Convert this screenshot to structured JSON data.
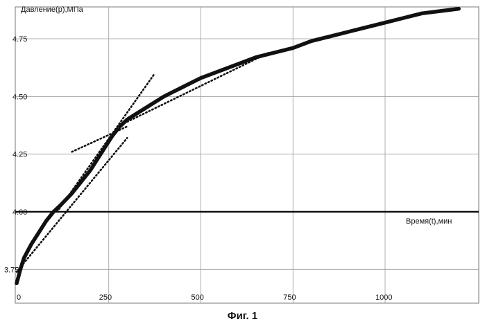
{
  "chart_data": {
    "type": "line",
    "ylabel": "Давление(р),МПа",
    "xlabel": "Время(t),мин",
    "y_ticks": [
      "4.75",
      "4.50",
      "4.25",
      "4.00",
      "3.75"
    ],
    "x_ticks": [
      "0",
      "250",
      "500",
      "750",
      "1000"
    ],
    "x_tick_values": [
      0,
      250,
      500,
      750,
      1000
    ],
    "y_tick_values": [
      4.75,
      4.5,
      4.25,
      4.0,
      3.75
    ],
    "xlim": [
      0,
      1250
    ],
    "ylim": [
      3.68,
      4.88
    ],
    "grid": true,
    "baseline_y": 4.0,
    "series": [
      {
        "style": "solid",
        "x": [
          0,
          5,
          10,
          20,
          40,
          60,
          80,
          100,
          120,
          150,
          180,
          200,
          220,
          240,
          260,
          280,
          300,
          320,
          350,
          400,
          450,
          500,
          550,
          600,
          650,
          700,
          750,
          800,
          850,
          900,
          950,
          1000,
          1050,
          1100,
          1150,
          1200
        ],
        "y": [
          3.69,
          3.72,
          3.75,
          3.8,
          3.86,
          3.91,
          3.96,
          4.0,
          4.03,
          4.08,
          4.14,
          4.18,
          4.23,
          4.28,
          4.33,
          4.37,
          4.4,
          4.42,
          4.45,
          4.5,
          4.54,
          4.58,
          4.61,
          4.64,
          4.67,
          4.69,
          4.71,
          4.74,
          4.76,
          4.78,
          4.8,
          4.82,
          4.84,
          4.86,
          4.87,
          4.88
        ]
      },
      {
        "style": "dotted",
        "x": [
          0,
          300
        ],
        "y": [
          3.74,
          4.32
        ]
      },
      {
        "style": "dotted",
        "x": [
          110,
          375
        ],
        "y": [
          4.0,
          4.6
        ]
      },
      {
        "style": "dotted",
        "x": [
          150,
          300
        ],
        "y": [
          4.26,
          4.37
        ]
      },
      {
        "style": "dotted",
        "x": [
          300,
          685
        ],
        "y": [
          4.39,
          4.69
        ]
      }
    ]
  },
  "figure_caption": "Фиг. 1"
}
